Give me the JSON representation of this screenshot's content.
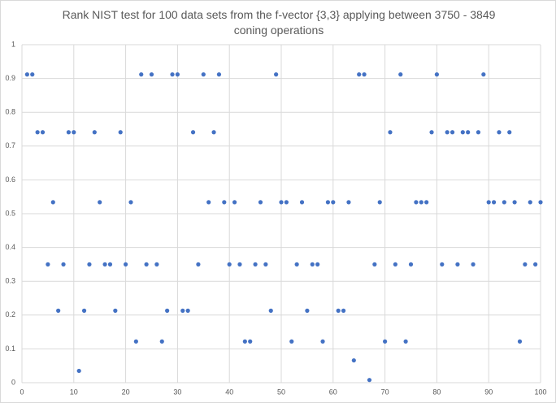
{
  "chart_data": {
    "type": "scatter",
    "title": "Rank NIST test for 100 data sets from the f-vector {3,3} applying between 3750 - 3849 coning operations",
    "color": "#4472c4",
    "grid": true,
    "x": [
      1,
      2,
      3,
      4,
      5,
      6,
      7,
      8,
      9,
      10,
      11,
      12,
      13,
      14,
      15,
      16,
      17,
      18,
      19,
      20,
      21,
      22,
      23,
      24,
      25,
      26,
      27,
      28,
      29,
      30,
      31,
      32,
      33,
      34,
      35,
      36,
      37,
      38,
      39,
      40,
      41,
      42,
      43,
      44,
      45,
      46,
      47,
      48,
      49,
      50,
      51,
      52,
      53,
      54,
      55,
      56,
      57,
      58,
      59,
      60,
      61,
      62,
      63,
      64,
      65,
      66,
      67,
      68,
      69,
      70,
      71,
      72,
      73,
      74,
      75,
      76,
      77,
      78,
      79,
      80,
      81,
      82,
      83,
      84,
      85,
      86,
      87,
      88,
      89,
      90,
      91,
      92,
      93,
      94,
      95,
      96,
      97,
      98,
      99,
      100
    ],
    "values": [
      0.912,
      0.912,
      0.741,
      0.741,
      0.35,
      0.534,
      0.213,
      0.35,
      0.741,
      0.741,
      0.035,
      0.213,
      0.35,
      0.741,
      0.534,
      0.35,
      0.35,
      0.213,
      0.741,
      0.35,
      0.534,
      0.122,
      0.912,
      0.35,
      0.912,
      0.35,
      0.122,
      0.213,
      0.912,
      0.912,
      0.213,
      0.213,
      0.741,
      0.35,
      0.912,
      0.534,
      0.741,
      0.912,
      0.534,
      0.35,
      0.534,
      0.35,
      0.122,
      0.122,
      0.35,
      0.534,
      0.35,
      0.213,
      0.912,
      0.534,
      0.534,
      0.122,
      0.35,
      0.534,
      0.213,
      0.35,
      0.35,
      0.122,
      0.534,
      0.534,
      0.213,
      0.213,
      0.534,
      0.066,
      0.912,
      0.912,
      0.008,
      0.35,
      0.534,
      0.122,
      0.741,
      0.35,
      0.912,
      0.122,
      0.35,
      0.534,
      0.534,
      0.534,
      0.741,
      0.912,
      0.35,
      0.741,
      0.741,
      0.35,
      0.741,
      0.741,
      0.35,
      0.741,
      0.912,
      0.534,
      0.534,
      0.741,
      0.534,
      0.741,
      0.534,
      0.122,
      0.35,
      0.534,
      0.35,
      0.534
    ],
    "xlim": [
      0,
      100
    ],
    "xticks": [
      0,
      10,
      20,
      30,
      40,
      50,
      60,
      70,
      80,
      90,
      100
    ],
    "ylim": [
      0,
      1
    ],
    "yticks": [
      0,
      0.1,
      0.2,
      0.3,
      0.4,
      0.5,
      0.6,
      0.7,
      0.8,
      0.9,
      1
    ]
  }
}
